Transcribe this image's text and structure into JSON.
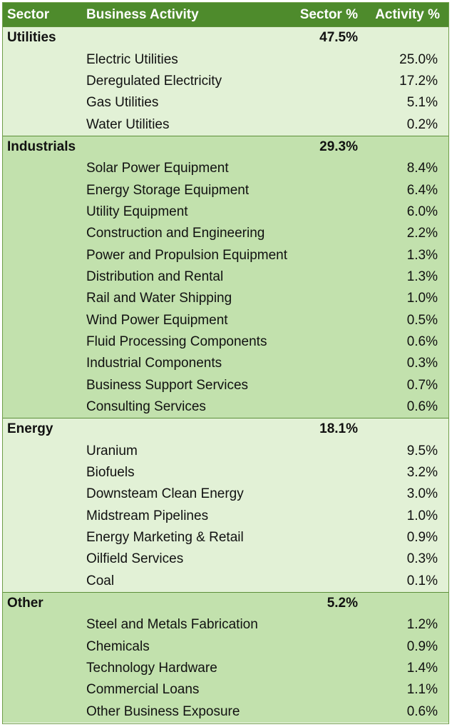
{
  "header": {
    "sector": "Sector",
    "activity": "Business Activity",
    "sector_pct": "Sector %",
    "activity_pct": "Activity %"
  },
  "sectors": [
    {
      "name": "Utilities",
      "pct": "47.5%",
      "activities": [
        {
          "name": "Electric Utilities",
          "pct": "25.0%"
        },
        {
          "name": "Deregulated Electricity",
          "pct": "17.2%"
        },
        {
          "name": "Gas Utilities",
          "pct": "5.1%"
        },
        {
          "name": "Water Utilities",
          "pct": "0.2%"
        }
      ]
    },
    {
      "name": "Industrials",
      "pct": "29.3%",
      "activities": [
        {
          "name": "Solar Power Equipment",
          "pct": "8.4%"
        },
        {
          "name": "Energy Storage Equipment",
          "pct": "6.4%"
        },
        {
          "name": "Utility Equipment",
          "pct": "6.0%"
        },
        {
          "name": "Construction and Engineering",
          "pct": "2.2%"
        },
        {
          "name": "Power and Propulsion Equipment",
          "pct": "1.3%"
        },
        {
          "name": "Distribution and Rental",
          "pct": "1.3%"
        },
        {
          "name": "Rail and Water Shipping",
          "pct": "1.0%"
        },
        {
          "name": "Wind Power Equipment",
          "pct": "0.5%"
        },
        {
          "name": "Fluid Processing Components",
          "pct": "0.6%"
        },
        {
          "name": "Industrial Components",
          "pct": "0.3%"
        },
        {
          "name": "Business Support Services",
          "pct": "0.7%"
        },
        {
          "name": "Consulting Services",
          "pct": "0.6%"
        }
      ]
    },
    {
      "name": "Energy",
      "pct": "18.1%",
      "activities": [
        {
          "name": "Uranium",
          "pct": "9.5%"
        },
        {
          "name": "Biofuels",
          "pct": "3.2%"
        },
        {
          "name": "Downsteam Clean Energy",
          "pct": "3.0%"
        },
        {
          "name": "Midstream Pipelines",
          "pct": "1.0%"
        },
        {
          "name": "Energy Marketing & Retail",
          "pct": "0.9%"
        },
        {
          "name": "Oilfield Services",
          "pct": "0.3%"
        },
        {
          "name": "Coal",
          "pct": "0.1%"
        }
      ]
    },
    {
      "name": "Other",
      "pct": "5.2%",
      "activities": [
        {
          "name": "Steel and Metals Fabrication",
          "pct": "1.2%"
        },
        {
          "name": "Chemicals",
          "pct": "0.9%"
        },
        {
          "name": "Technology Hardware",
          "pct": "1.4%"
        },
        {
          "name": "Commercial Loans",
          "pct": "1.1%"
        },
        {
          "name": "Other Business Exposure",
          "pct": "0.6%"
        }
      ]
    }
  ],
  "colors": {
    "header_bg": "#4e8b2c",
    "band_light": "#e2f1d6",
    "band_dark": "#c2e1ad",
    "border": "#5d8f3a"
  }
}
